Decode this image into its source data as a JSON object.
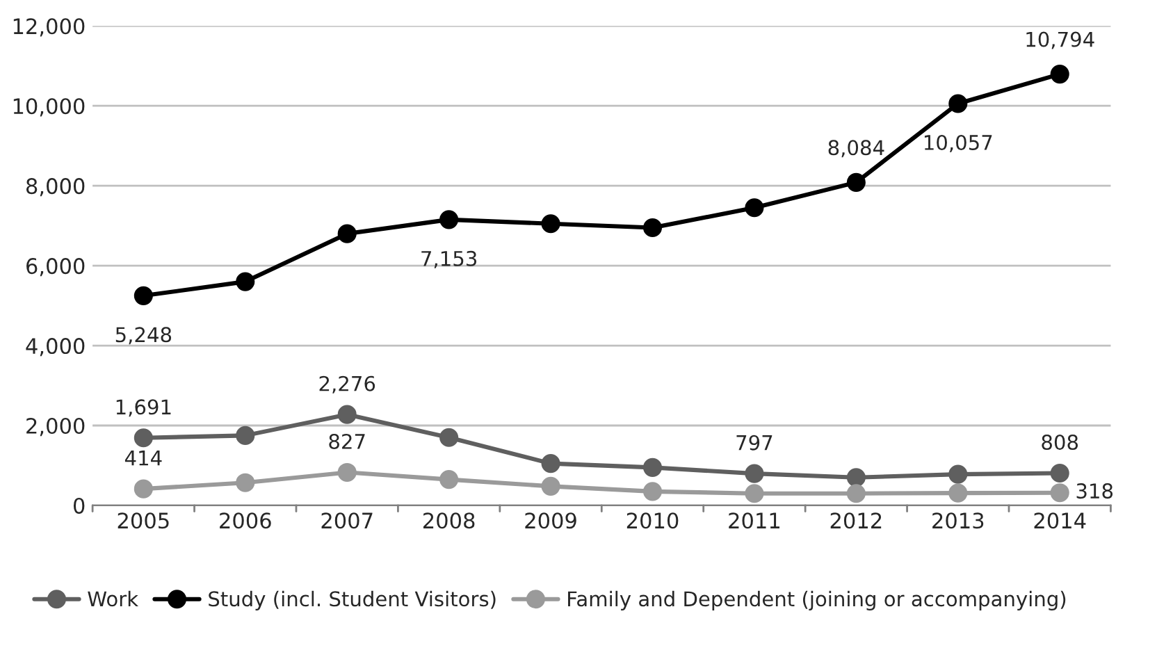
{
  "chart_data": {
    "type": "line",
    "categories": [
      "2005",
      "2006",
      "2007",
      "2008",
      "2009",
      "2010",
      "2011",
      "2012",
      "2013",
      "2014"
    ],
    "series": [
      {
        "name": "Work",
        "color": "#5f5f5f",
        "values": [
          1691,
          1750,
          2276,
          1700,
          1050,
          950,
          797,
          700,
          780,
          808
        ],
        "value_labels": [
          "1,691",
          null,
          "2,276",
          null,
          null,
          null,
          "797",
          null,
          null,
          "808"
        ]
      },
      {
        "name": "Study (incl. Student Visitors)",
        "color": "#000000",
        "values": [
          5248,
          5600,
          6800,
          7153,
          7050,
          6950,
          7450,
          8084,
          10057,
          10794
        ],
        "value_labels": [
          "5,248",
          null,
          null,
          "7,153",
          null,
          null,
          null,
          "8,084",
          "10,057",
          "10,794"
        ]
      },
      {
        "name": "Family and Dependent (joining or accompanying)",
        "color": "#9a9a9a",
        "values": [
          414,
          570,
          827,
          650,
          480,
          350,
          300,
          300,
          310,
          318
        ],
        "value_labels": [
          "414",
          null,
          "827",
          null,
          null,
          null,
          null,
          null,
          null,
          "318"
        ]
      }
    ],
    "ylim": [
      0,
      12000
    ],
    "yticks": [
      {
        "value": 0,
        "label": "0"
      },
      {
        "value": 2000,
        "label": "2,000"
      },
      {
        "value": 4000,
        "label": "4,000"
      },
      {
        "value": 6000,
        "label": "6,000"
      },
      {
        "value": 8000,
        "label": "8,000"
      },
      {
        "value": 10000,
        "label": "10,000"
      },
      {
        "value": 12000,
        "label": "12,000"
      }
    ],
    "grid": "y",
    "legend": "bottom",
    "marker": "circle",
    "line_style": "solid"
  }
}
